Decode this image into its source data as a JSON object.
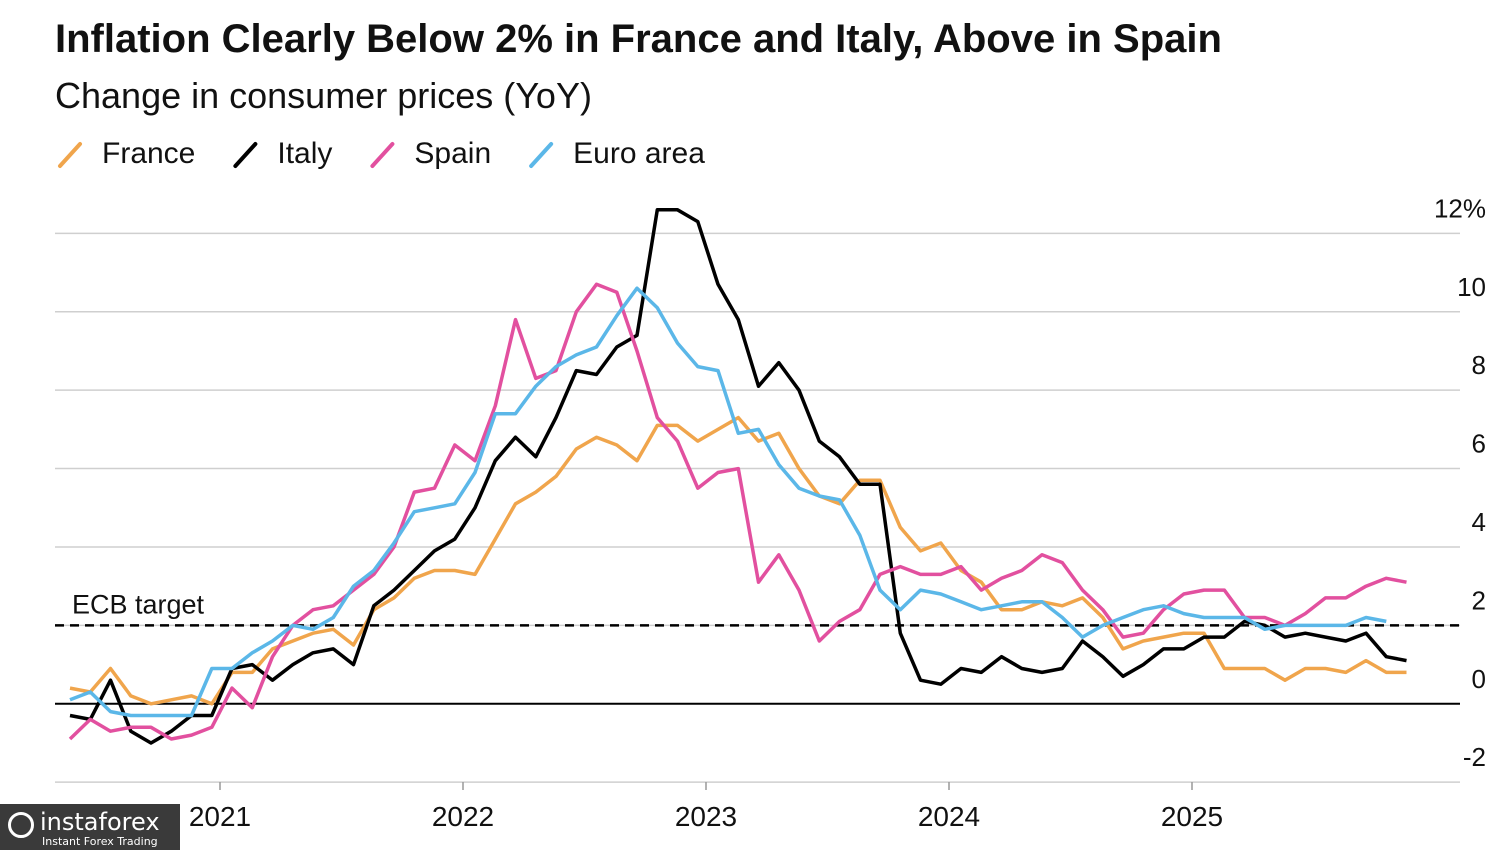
{
  "chart_data": {
    "type": "line",
    "title": "Inflation Clearly Below 2% in France and Italy, Above in Spain",
    "subtitle": "Change in consumer prices (YoY)",
    "categories": [
      null,
      null,
      null,
      null,
      null,
      null,
      null,
      null,
      "2021",
      null,
      null,
      null,
      null,
      null,
      null,
      null,
      null,
      null,
      null,
      null,
      "2022",
      null,
      null,
      null,
      null,
      null,
      null,
      null,
      null,
      null,
      null,
      null,
      "2023",
      null,
      null,
      null,
      null,
      null,
      null,
      null,
      null,
      null,
      null,
      null,
      "2024",
      null,
      null,
      null,
      null,
      null,
      null,
      null,
      null,
      null,
      null,
      null,
      "2025",
      null,
      null,
      null,
      null,
      null,
      null,
      null,
      null,
      null,
      null
    ],
    "series": [
      {
        "name": "France",
        "color": "#f0a54c",
        "values": [
          0.4,
          0.3,
          0.9,
          0.2,
          0.0,
          0.1,
          0.2,
          0.0,
          0.8,
          0.8,
          1.4,
          1.6,
          1.8,
          1.9,
          1.5,
          2.4,
          2.7,
          3.2,
          3.4,
          3.4,
          3.3,
          4.2,
          5.1,
          5.4,
          5.8,
          6.5,
          6.8,
          6.6,
          6.2,
          7.1,
          7.1,
          6.7,
          7.0,
          7.3,
          6.7,
          6.9,
          6.0,
          5.3,
          5.1,
          5.7,
          5.7,
          4.5,
          3.9,
          4.1,
          3.4,
          3.1,
          2.4,
          2.4,
          2.6,
          2.5,
          2.7,
          2.2,
          1.4,
          1.6,
          1.7,
          1.8,
          1.8,
          0.9,
          0.9,
          0.9,
          0.6,
          0.9,
          0.9,
          0.8,
          1.1,
          0.8,
          0.8
        ]
      },
      {
        "name": "Italy",
        "color": "#000000",
        "values": [
          -0.3,
          -0.4,
          0.6,
          -0.7,
          -1.0,
          -0.7,
          -0.3,
          -0.3,
          0.9,
          1.0,
          0.6,
          1.0,
          1.3,
          1.4,
          1.0,
          2.5,
          2.9,
          3.4,
          3.9,
          4.2,
          5.0,
          6.2,
          6.8,
          6.3,
          7.3,
          8.5,
          8.4,
          9.1,
          9.4,
          12.6,
          12.6,
          12.3,
          10.7,
          9.8,
          8.1,
          8.7,
          8.0,
          6.7,
          6.3,
          5.6,
          5.6,
          1.8,
          0.6,
          0.5,
          0.9,
          0.8,
          1.2,
          0.9,
          0.8,
          0.9,
          1.6,
          1.2,
          0.7,
          1.0,
          1.4,
          1.4,
          1.7,
          1.7,
          2.1,
          2.0,
          1.7,
          1.8,
          1.7,
          1.6,
          1.8,
          1.2,
          1.1
        ]
      },
      {
        "name": "Spain",
        "color": "#e2509f",
        "values": [
          -0.9,
          -0.4,
          -0.7,
          -0.6,
          -0.6,
          -0.9,
          -0.8,
          -0.6,
          0.4,
          -0.1,
          1.2,
          2.0,
          2.4,
          2.5,
          2.9,
          3.3,
          4.0,
          5.4,
          5.5,
          6.6,
          6.2,
          7.6,
          9.8,
          8.3,
          8.5,
          10.0,
          10.7,
          10.5,
          9.0,
          7.3,
          6.7,
          5.5,
          5.9,
          6.0,
          3.1,
          3.8,
          2.9,
          1.6,
          2.1,
          2.4,
          3.3,
          3.5,
          3.3,
          3.3,
          3.5,
          2.9,
          3.2,
          3.4,
          3.8,
          3.6,
          2.9,
          2.4,
          1.7,
          1.8,
          2.4,
          2.8,
          2.9,
          2.9,
          2.2,
          2.2,
          2.0,
          2.3,
          2.7,
          2.7,
          3.0,
          3.2,
          3.1
        ]
      },
      {
        "name": "Euro area",
        "color": "#5bb7e8",
        "values": [
          0.1,
          0.3,
          -0.2,
          -0.3,
          -0.3,
          -0.3,
          -0.3,
          0.9,
          0.9,
          1.3,
          1.6,
          2.0,
          1.9,
          2.2,
          3.0,
          3.4,
          4.1,
          4.9,
          5.0,
          5.1,
          5.9,
          7.4,
          7.4,
          8.1,
          8.6,
          8.9,
          9.1,
          9.9,
          10.6,
          10.1,
          9.2,
          8.6,
          8.5,
          6.9,
          7.0,
          6.1,
          5.5,
          5.3,
          5.2,
          4.3,
          2.9,
          2.4,
          2.9,
          2.8,
          2.6,
          2.4,
          2.5,
          2.6,
          2.6,
          2.2,
          1.7,
          2.0,
          2.2,
          2.4,
          2.5,
          2.3,
          2.2,
          2.2,
          2.2,
          1.9,
          2.0,
          2.0,
          2.0,
          2.0,
          2.2,
          2.1,
          null
        ]
      }
    ],
    "ylim": [
      -2.2,
      12.8
    ],
    "yticks": [
      -2,
      0,
      2,
      4,
      6,
      8,
      10,
      {
        "value": 12,
        "label": "12%"
      }
    ],
    "grid": true,
    "legend": "top-left",
    "reference_line": {
      "label": "ECB target",
      "value": 2
    }
  },
  "watermark": {
    "name": "instaforex",
    "tagline": "Instant Forex Trading"
  }
}
